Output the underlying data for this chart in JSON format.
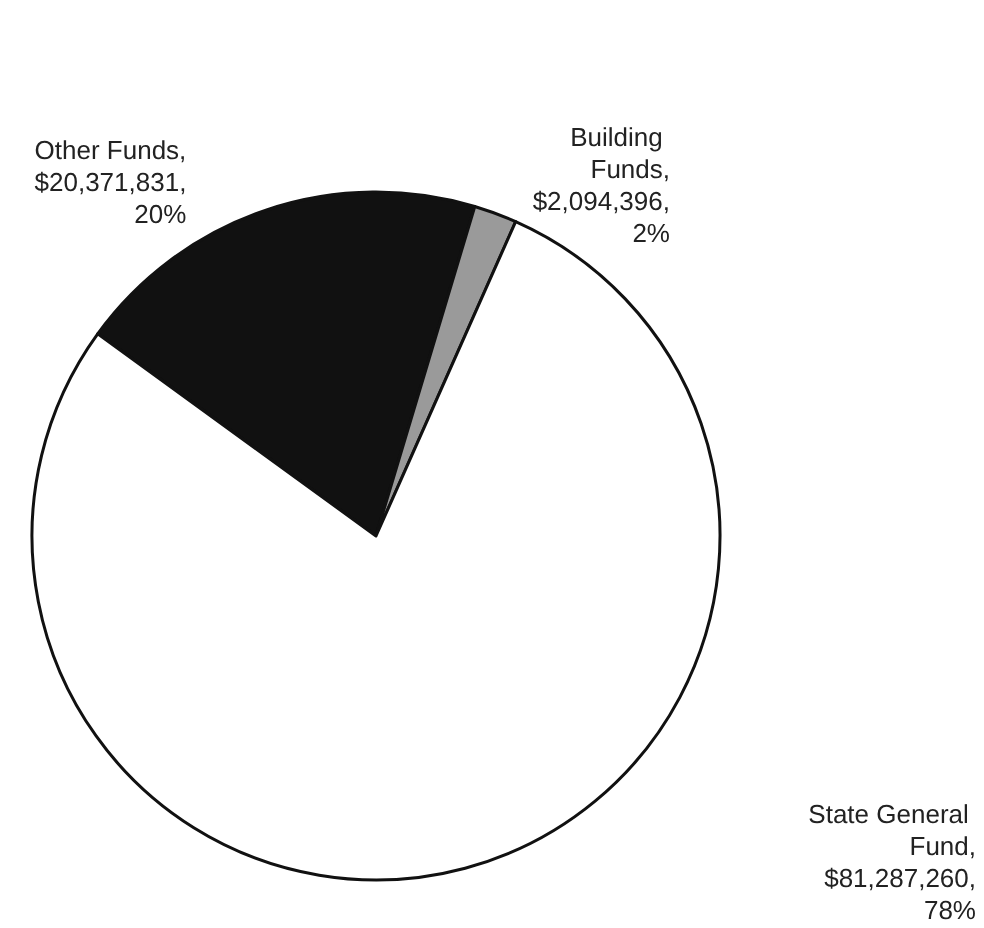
{
  "chart_data": {
    "type": "pie",
    "categories": [
      "Other Funds",
      "Building Funds",
      "State General Fund"
    ],
    "values": [
      20371831,
      2094396,
      81287260
    ],
    "colors": [
      "#111111",
      "#9a9a9a",
      "#ffffff"
    ],
    "value_labels": [
      ",\n$20,371,831,\n20%",
      ",\n$2,094,396,\n2%",
      ",\n$81,287,260,\n78%"
    ],
    "legend": false
  }
}
